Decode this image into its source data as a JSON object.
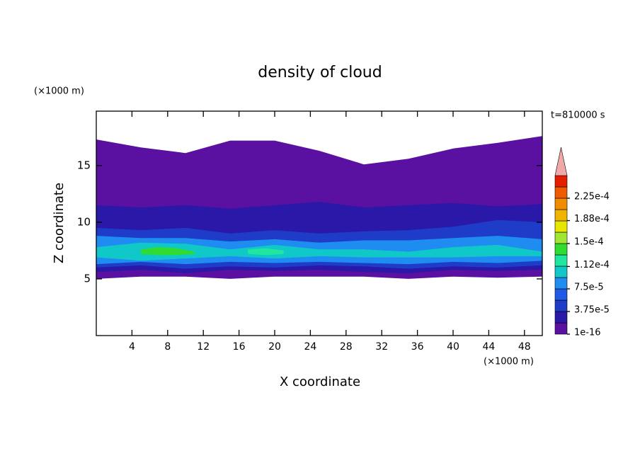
{
  "chart_data": {
    "type": "contour",
    "title": "density of cloud",
    "xlabel": "X coordinate",
    "ylabel": "Z coordinate",
    "xunit": "(×1000 m)",
    "yunit": "(×1000 m)",
    "annotation": "t=810000 s",
    "xlim": [
      0,
      50
    ],
    "xticks": [
      4,
      8,
      12,
      16,
      20,
      24,
      28,
      32,
      36,
      40,
      44,
      48
    ],
    "ylim": [
      0,
      19.8
    ],
    "yticks": [
      5,
      10,
      15
    ],
    "colorbar": {
      "colors": [
        "#5a10a0",
        "#2a18a8",
        "#1e3cc8",
        "#1e5ae6",
        "#1e8cf0",
        "#10c8c8",
        "#20e6a0",
        "#30dc30",
        "#a0e632",
        "#e6e600",
        "#f0b400",
        "#f08c00",
        "#f05a00",
        "#e61e00"
      ],
      "extend_color": "#f0a8a8",
      "step": 1.875e-05,
      "ticks": [
        {
          "value": 1e-16,
          "label": "1e-16"
        },
        {
          "value": 3.75e-05,
          "label": "3.75e-5"
        },
        {
          "value": 7.5e-05,
          "label": "7.5e-5"
        },
        {
          "value": 0.000112,
          "label": "1.12e-4"
        },
        {
          "value": 0.00015,
          "label": "1.5e-4"
        },
        {
          "value": 0.000188,
          "label": "1.88e-4"
        },
        {
          "value": 0.000225,
          "label": "2.25e-4"
        }
      ]
    },
    "layers": [
      {
        "color": "#5a10a0",
        "x": [
          0,
          5,
          10,
          15,
          20,
          25,
          30,
          35,
          40,
          45,
          50
        ],
        "top": [
          17.3,
          16.6,
          16.1,
          17.2,
          17.2,
          16.3,
          15.1,
          15.6,
          16.5,
          17.0,
          17.6
        ],
        "bottom": [
          5.0,
          5.2,
          5.2,
          5.0,
          5.2,
          5.2,
          5.2,
          5.0,
          5.2,
          5.1,
          5.2
        ]
      },
      {
        "color": "#2a18a8",
        "x": [
          0,
          5,
          10,
          15,
          20,
          25,
          30,
          35,
          40,
          45,
          50
        ],
        "top": [
          11.5,
          11.3,
          11.5,
          11.2,
          11.5,
          11.8,
          11.3,
          11.5,
          11.7,
          11.4,
          11.6
        ],
        "bottom": [
          5.6,
          5.8,
          5.5,
          5.8,
          5.7,
          5.8,
          5.6,
          5.5,
          5.8,
          5.7,
          5.8
        ]
      },
      {
        "color": "#1e3cc8",
        "x": [
          0,
          5,
          10,
          15,
          20,
          25,
          30,
          35,
          40,
          45,
          50
        ],
        "top": [
          9.5,
          9.3,
          9.5,
          9.0,
          9.3,
          9.0,
          9.2,
          9.3,
          9.6,
          10.2,
          10.0
        ],
        "bottom": [
          6.0,
          6.2,
          5.9,
          6.1,
          6.0,
          6.2,
          6.1,
          5.9,
          6.1,
          6.0,
          6.2
        ]
      },
      {
        "color": "#1e8cf0",
        "x": [
          0,
          5,
          10,
          15,
          20,
          25,
          30,
          35,
          40,
          45,
          50
        ],
        "top": [
          8.8,
          8.6,
          8.6,
          8.3,
          8.5,
          8.2,
          8.4,
          8.4,
          8.6,
          8.8,
          8.5
        ],
        "bottom": [
          6.3,
          6.5,
          6.3,
          6.5,
          6.4,
          6.5,
          6.4,
          6.3,
          6.5,
          6.4,
          6.6
        ]
      },
      {
        "color": "#10c8c8",
        "x": [
          0,
          5,
          10,
          15,
          20,
          25,
          30,
          35,
          40,
          45,
          50
        ],
        "top": [
          7.8,
          8.2,
          8.1,
          7.6,
          8.0,
          7.6,
          7.6,
          7.4,
          7.8,
          8.0,
          7.4
        ],
        "bottom": [
          6.9,
          6.6,
          6.8,
          7.0,
          6.8,
          7.0,
          6.9,
          6.9,
          6.9,
          7.0,
          7.0
        ]
      },
      {
        "color": "#30dc30",
        "x": [
          5,
          7,
          9,
          11
        ],
        "top": [
          7.6,
          7.8,
          7.7,
          7.4
        ],
        "bottom": [
          7.2,
          7.1,
          7.1,
          7.2
        ]
      },
      {
        "color": "#20e6a0",
        "x": [
          17,
          19,
          21
        ],
        "top": [
          7.6,
          7.7,
          7.5
        ],
        "bottom": [
          7.2,
          7.1,
          7.2
        ]
      }
    ]
  }
}
